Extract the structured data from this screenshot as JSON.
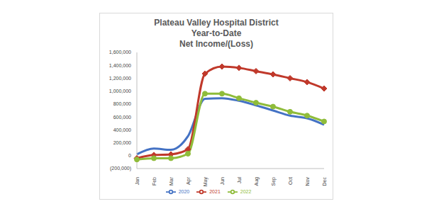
{
  "chart_data": {
    "type": "line",
    "title": "Plateau Valley Hospital District\nYear-to-Date\nNet Income/(Loss)",
    "categories": [
      "Jan",
      "Feb",
      "Mar",
      "Apr",
      "May",
      "Jun",
      "Jul",
      "Aug",
      "Sep",
      "Oct",
      "Nov",
      "Dec"
    ],
    "series": [
      {
        "name": "2020",
        "color": "#4472c4",
        "marker": "none",
        "line_style": "solid",
        "values": [
          20000,
          110000,
          90000,
          300000,
          880000,
          890000,
          850000,
          780000,
          700000,
          620000,
          580000,
          480000
        ]
      },
      {
        "name": "2021",
        "color": "#c0392b",
        "marker": "diamond",
        "line_style": "solid",
        "values": [
          -40000,
          10000,
          20000,
          100000,
          1270000,
          1380000,
          1360000,
          1310000,
          1260000,
          1200000,
          1140000,
          1040000
        ]
      },
      {
        "name": "2022",
        "color": "#8fbc3a",
        "marker": "circle",
        "line_style": "solid",
        "values": [
          -60000,
          -40000,
          -40000,
          30000,
          960000,
          960000,
          890000,
          820000,
          760000,
          680000,
          620000,
          530000
        ]
      }
    ],
    "ylim": [
      -200000,
      1600000
    ],
    "yticks": [
      {
        "value": -200000,
        "label": "(200,000)"
      },
      0,
      {
        "value": 200000,
        "label": "200,000"
      },
      {
        "value": 400000,
        "label": "400,000"
      },
      {
        "value": 600000,
        "label": "600,000"
      },
      {
        "value": 800000,
        "label": "800,000"
      },
      {
        "value": 1000000,
        "label": "1,000,000"
      },
      {
        "value": 1200000,
        "label": "1,200,000"
      },
      {
        "value": 1400000,
        "label": "1,400,000"
      },
      {
        "value": 1600000,
        "label": "1,600,000"
      }
    ],
    "grid": false,
    "legend": "bottom"
  }
}
